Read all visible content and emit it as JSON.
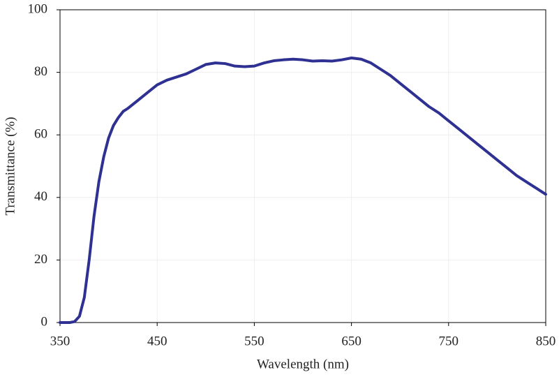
{
  "chart_data": {
    "type": "line",
    "xlabel": "Wavelength (nm)",
    "ylabel": "Transmittance (%)",
    "x": [
      350,
      360,
      365,
      370,
      375,
      380,
      385,
      390,
      395,
      400,
      405,
      410,
      415,
      420,
      430,
      440,
      450,
      460,
      470,
      480,
      490,
      500,
      510,
      520,
      530,
      540,
      550,
      560,
      570,
      580,
      590,
      600,
      610,
      620,
      630,
      640,
      650,
      660,
      670,
      680,
      690,
      700,
      710,
      720,
      730,
      740,
      750,
      760,
      770,
      780,
      790,
      800,
      810,
      820,
      830,
      840,
      850
    ],
    "series": [
      {
        "name": "Transmittance",
        "color": "#2e3192",
        "values": [
          0,
          0,
          0.3,
          2,
          8,
          20,
          34,
          45,
          53,
          59,
          63,
          65.5,
          67.5,
          68.5,
          71,
          73.5,
          76,
          77.5,
          78.5,
          79.5,
          81,
          82.5,
          83,
          82.8,
          82,
          81.8,
          82,
          83,
          83.7,
          84,
          84.2,
          84,
          83.6,
          83.7,
          83.6,
          84,
          84.6,
          84.2,
          83,
          81,
          79,
          76.5,
          74,
          71.5,
          69,
          67,
          64.5,
          62,
          59.5,
          57,
          54.5,
          52,
          49.5,
          47,
          45,
          43,
          41
        ]
      }
    ],
    "xlim": [
      350,
      850
    ],
    "xticks": [
      350,
      450,
      550,
      650,
      750,
      850
    ],
    "ylim": [
      0,
      100
    ],
    "yticks": [
      0,
      20,
      40,
      60,
      80,
      100
    ],
    "grid": true
  }
}
